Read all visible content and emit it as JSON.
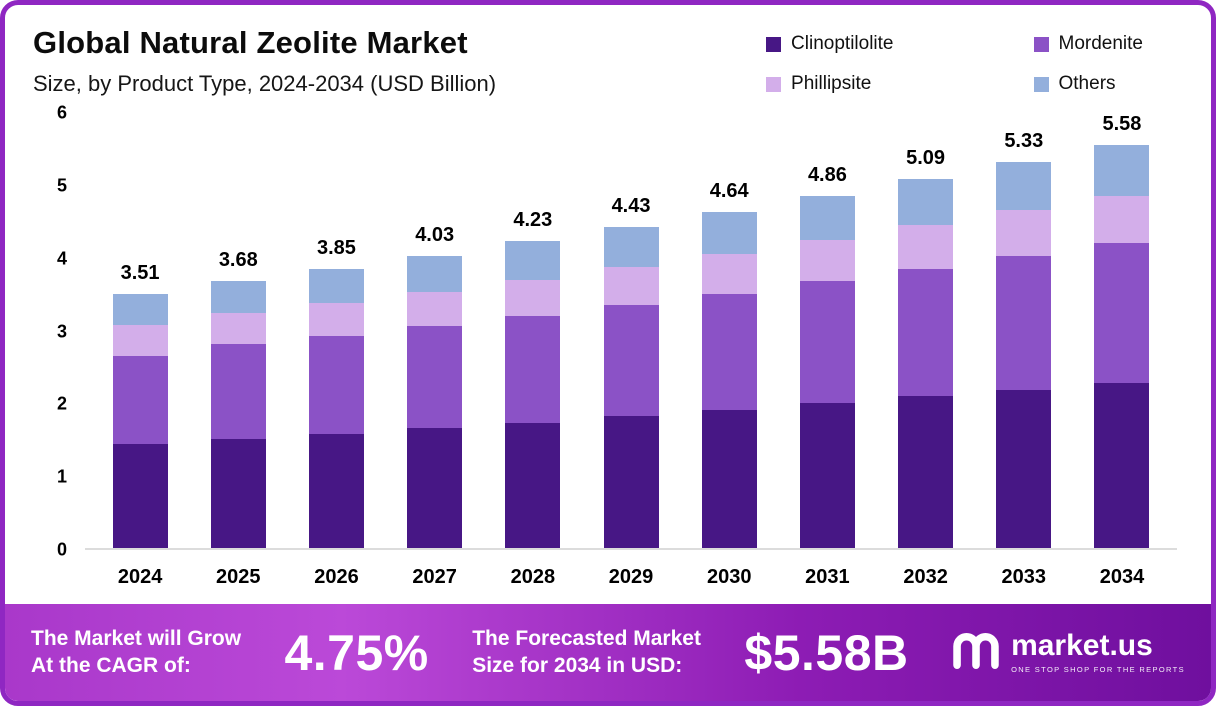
{
  "header": {
    "title": "Global Natural Zeolite Market",
    "subtitle": "Size, by Product Type, 2024-2034 (USD Billion)"
  },
  "chart_data": {
    "type": "bar",
    "stacked": true,
    "title": "Global Natural Zeolite Market Size, by Product Type, 2024-2034 (USD Billion)",
    "categories": [
      "2024",
      "2025",
      "2026",
      "2027",
      "2028",
      "2029",
      "2030",
      "2031",
      "2032",
      "2033",
      "2034"
    ],
    "series": [
      {
        "name": "Clinoptilolite",
        "color": "#471785",
        "values": [
          1.44,
          1.5,
          1.57,
          1.66,
          1.73,
          1.82,
          1.91,
          2.0,
          2.09,
          2.18,
          2.29
        ]
      },
      {
        "name": "Mordenite",
        "color": "#8b52c6",
        "values": [
          1.21,
          1.31,
          1.36,
          1.4,
          1.47,
          1.53,
          1.59,
          1.68,
          1.76,
          1.85,
          1.93
        ]
      },
      {
        "name": "Phillipsite",
        "color": "#d3aeea",
        "values": [
          0.42,
          0.43,
          0.45,
          0.47,
          0.5,
          0.53,
          0.55,
          0.57,
          0.6,
          0.63,
          0.66
        ]
      },
      {
        "name": "Others",
        "color": "#93afdc",
        "values": [
          0.44,
          0.44,
          0.47,
          0.5,
          0.53,
          0.55,
          0.59,
          0.61,
          0.64,
          0.67,
          0.7
        ]
      }
    ],
    "totals": [
      "3.51",
      "3.68",
      "3.85",
      "4.03",
      "4.23",
      "4.43",
      "4.64",
      "4.86",
      "5.09",
      "5.33",
      "5.58"
    ],
    "xlabel": "",
    "ylabel": "",
    "ylim": [
      0,
      6
    ],
    "y_ticks": [
      0,
      1,
      2,
      3,
      4,
      5,
      6
    ],
    "grid": false,
    "legend_position": "top-right"
  },
  "banner": {
    "cagr_label_line1": "The Market will Grow",
    "cagr_label_line2": "At the CAGR of:",
    "cagr_value": "4.75%",
    "forecast_label_line1": "The Forecasted Market",
    "forecast_label_line2": "Size for 2034 in USD:",
    "forecast_value": "$5.58B",
    "logo_text": "market.us",
    "logo_tagline": "ONE STOP SHOP FOR THE REPORTS"
  },
  "colors": {
    "frame": "#8f27c2",
    "banner_gradient_start": "#bb49d8",
    "banner_gradient_end": "#6f0f9e"
  }
}
